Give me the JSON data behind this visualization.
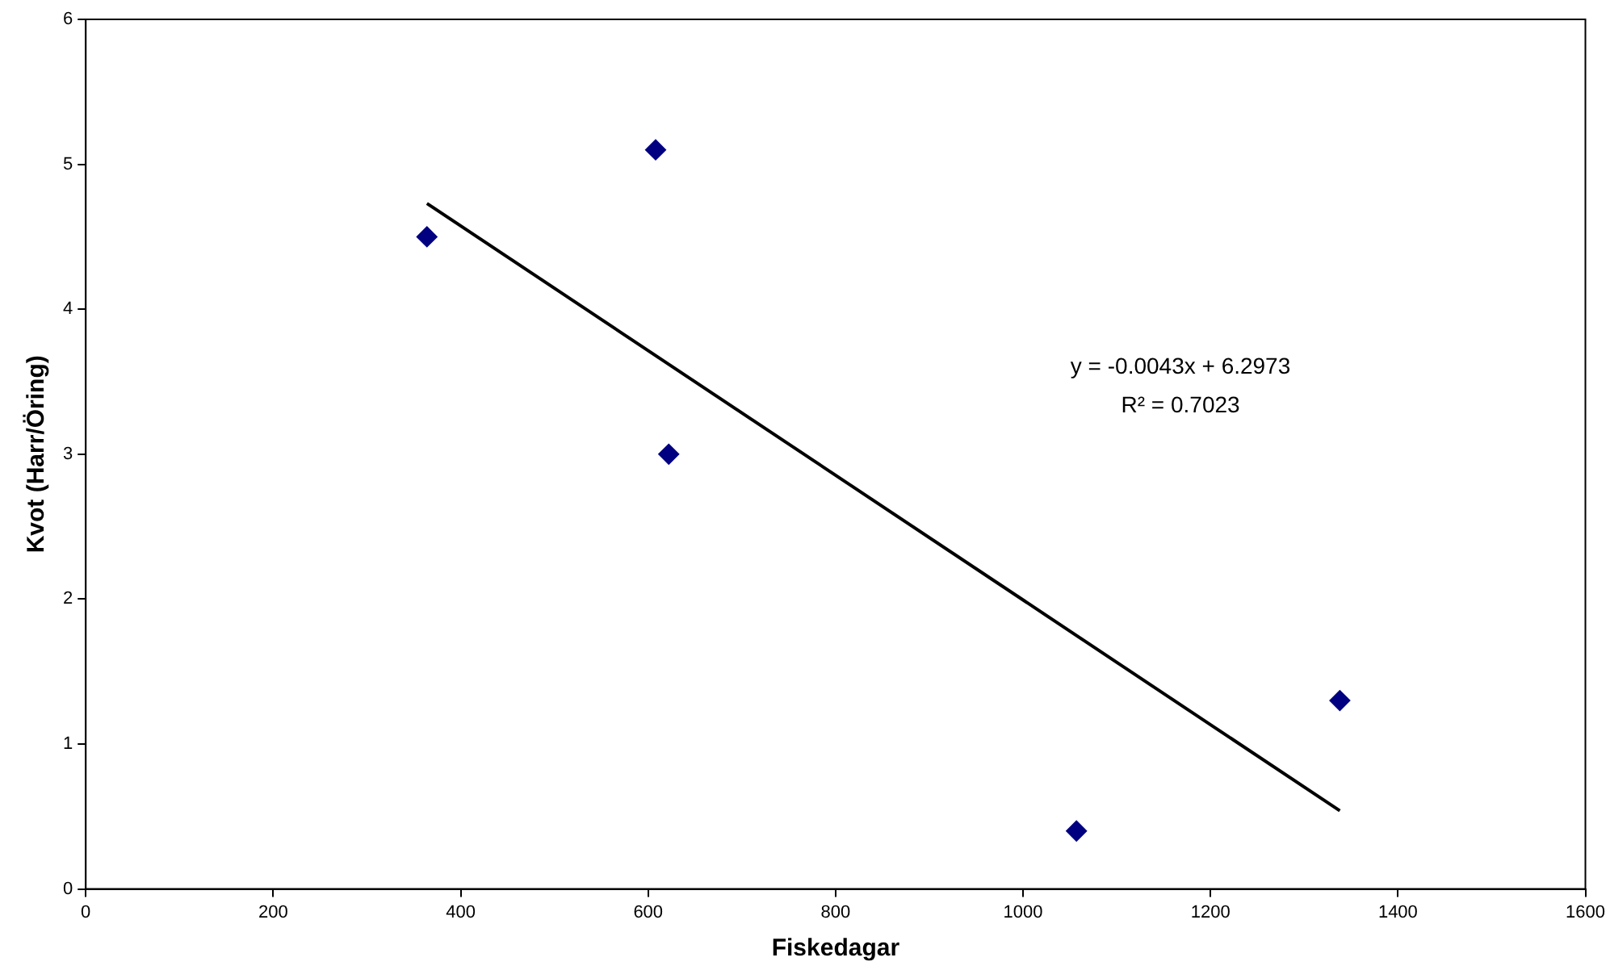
{
  "chart_data": {
    "type": "scatter",
    "xlabel": "Fiskedagar",
    "ylabel": "Kvot (Harr/Öring)",
    "xlim": [
      0,
      1600
    ],
    "xticks": [
      0,
      200,
      400,
      600,
      800,
      1000,
      1200,
      1400,
      1600
    ],
    "ylim": [
      0,
      6
    ],
    "yticks": [
      0,
      1,
      2,
      3,
      4,
      5,
      6
    ],
    "grid": false,
    "legend": false,
    "series": [
      {
        "type": "scatter",
        "marker": "diamond",
        "color": "#000080",
        "x": [
          364,
          608,
          622,
          1057,
          1338
        ],
        "values": [
          4.5,
          5.1,
          3.0,
          0.4,
          1.3
        ]
      },
      {
        "type": "line",
        "marker": "none",
        "color": "#000000",
        "x": [
          364,
          1338
        ],
        "values": [
          4.73,
          0.54
        ]
      }
    ],
    "annotations": [
      "y = -0.0043x + 6.2973",
      "R² = 0.7023"
    ]
  }
}
